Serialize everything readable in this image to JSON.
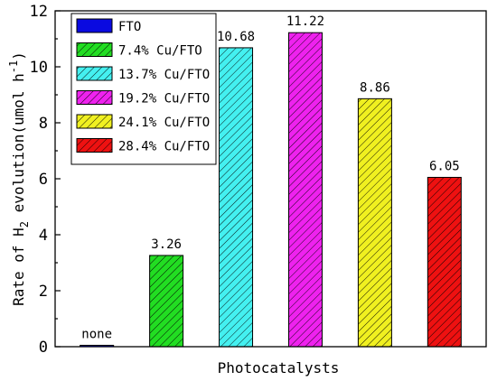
{
  "chart_data": {
    "type": "bar",
    "xlabel": "Photocatalysts",
    "ylabel": {
      "pre": "Rate of H",
      "sub": "2",
      "mid": " evolution(umol h",
      "sup": "-1",
      "post": ")"
    },
    "ylim": [
      0,
      12
    ],
    "yticks": [
      "0",
      "2",
      "4",
      "6",
      "8",
      "10",
      "12"
    ],
    "grid": false,
    "legend_placement": "top-left",
    "bars": [
      {
        "series": "FTO",
        "value": 0.05,
        "label": "none",
        "color": "#0a0ae0",
        "hatched": false
      },
      {
        "series": "7.4% Cu/FTO",
        "value": 3.26,
        "label": "3.26",
        "color": "#22dd22",
        "hatched": true
      },
      {
        "series": "13.7% Cu/FTO",
        "value": 10.68,
        "label": "10.68",
        "color": "#44f0f0",
        "hatched": true
      },
      {
        "series": "19.2% Cu/FTO",
        "value": 11.22,
        "label": "11.22",
        "color": "#ee22ee",
        "hatched": true
      },
      {
        "series": "24.1% Cu/FTO",
        "value": 8.86,
        "label": "8.86",
        "color": "#f0f020",
        "hatched": true
      },
      {
        "series": "28.4% Cu/FTO",
        "value": 6.05,
        "label": "6.05",
        "color": "#ee1111",
        "hatched": true
      }
    ]
  }
}
